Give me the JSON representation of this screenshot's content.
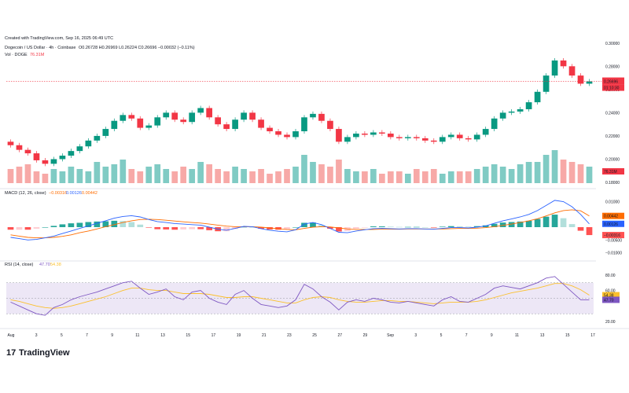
{
  "header": {
    "created": "Created with TradingView.com, Sep 16, 2025 06:49 UTC",
    "symbol": "Dogecoin / US Dollar · 4h · Coinbase",
    "ohlc": "O0.26728  H0.26969  L0.26224  C0.26696  −0.00032 (−0.11%)",
    "vol_label": "Vol · DOGE",
    "vol_value": "76.31M"
  },
  "price_axis": {
    "ticks": [
      "0.30000",
      "0.28000",
      "0.26000",
      "0.24000",
      "0.22000",
      "0.20000",
      "0.18000"
    ],
    "last_price_label": "0.26696",
    "countdown_label": "01:10:30",
    "volume_label": "76.31M"
  },
  "macd": {
    "title": "MACD (12, 26, close)",
    "values_text": [
      "−0.00316",
      "0.00126",
      "0.00442"
    ],
    "ticks": [
      "0.01000",
      "0.00500",
      "−0.00500",
      "−0.01000"
    ],
    "labels": [
      "0.00442",
      "0.00126",
      "−0.00316"
    ]
  },
  "rsi": {
    "title": "RSI (14, close)",
    "values_text": [
      "47.70",
      "54.38"
    ],
    "ticks": [
      "80.00",
      "60.00",
      "20.00"
    ],
    "labels": [
      "54.38",
      "47.70"
    ]
  },
  "time_axis": {
    "ticks": [
      "Aug",
      "3",
      "5",
      "7",
      "9",
      "11",
      "13",
      "15",
      "17",
      "19",
      "21",
      "23",
      "25",
      "27",
      "29",
      "Sep",
      "3",
      "5",
      "7",
      "9",
      "11",
      "13",
      "15",
      "17"
    ]
  },
  "brand": {
    "name": "TradingView"
  },
  "colors": {
    "up": "#089981",
    "down": "#f23645",
    "macd_line": "#2962ff",
    "signal_line": "#ff6d00",
    "rsi_line": "#7e57c2",
    "rsi_ma": "#fbc02d",
    "rsi_band": "#ede7f6",
    "last_price": "#f23645"
  },
  "chart_data": {
    "type": "line",
    "title": "Dogecoin / US Dollar · 4h · Coinbase",
    "x_ticks": [
      "Aug",
      "3",
      "5",
      "7",
      "9",
      "11",
      "13",
      "15",
      "17",
      "19",
      "21",
      "23",
      "25",
      "27",
      "29",
      "Sep",
      "3",
      "5",
      "7",
      "9",
      "11",
      "13",
      "15",
      "17"
    ],
    "ylim": [
      0.18,
      0.31
    ],
    "price_close": [
      0.212,
      0.208,
      0.205,
      0.199,
      0.196,
      0.2,
      0.203,
      0.207,
      0.211,
      0.216,
      0.22,
      0.226,
      0.233,
      0.238,
      0.235,
      0.227,
      0.229,
      0.236,
      0.24,
      0.234,
      0.232,
      0.24,
      0.244,
      0.236,
      0.23,
      0.226,
      0.234,
      0.24,
      0.234,
      0.227,
      0.224,
      0.221,
      0.219,
      0.224,
      0.236,
      0.239,
      0.233,
      0.226,
      0.215,
      0.219,
      0.222,
      0.221,
      0.223,
      0.222,
      0.219,
      0.218,
      0.219,
      0.218,
      0.216,
      0.215,
      0.219,
      0.221,
      0.218,
      0.217,
      0.221,
      0.226,
      0.235,
      0.24,
      0.241,
      0.243,
      0.249,
      0.258,
      0.272,
      0.285,
      0.28,
      0.272,
      0.265,
      0.267
    ],
    "volume": [
      6,
      7,
      8,
      5,
      4,
      6,
      5,
      7,
      6,
      5,
      9,
      7,
      8,
      10,
      6,
      5,
      7,
      8,
      6,
      5,
      7,
      6,
      9,
      8,
      6,
      5,
      7,
      6,
      5,
      6,
      4,
      5,
      6,
      7,
      12,
      9,
      8,
      7,
      10,
      6,
      5,
      5,
      6,
      4,
      5,
      5,
      4,
      6,
      5,
      6,
      4,
      5,
      5,
      5,
      6,
      7,
      8,
      7,
      6,
      8,
      9,
      9,
      12,
      14,
      10,
      9,
      8,
      7
    ],
    "macd": [
      -0.004,
      -0.0045,
      -0.005,
      -0.0048,
      -0.0042,
      -0.0035,
      -0.0025,
      -0.0015,
      -0.0005,
      0.0005,
      0.0015,
      0.0025,
      0.0035,
      0.0042,
      0.0045,
      0.004,
      0.003,
      0.0022,
      0.0018,
      0.0014,
      0.0012,
      0.001,
      0.0008,
      0.0,
      -0.0008,
      -0.0012,
      -0.0005,
      0.0003,
      0.0002,
      -0.0006,
      -0.0012,
      -0.0016,
      -0.0018,
      -0.001,
      0.0012,
      0.0018,
      0.001,
      -0.0005,
      -0.002,
      -0.0022,
      -0.0015,
      -0.001,
      -0.0006,
      -0.0005,
      -0.0006,
      -0.0007,
      -0.0006,
      -0.0006,
      -0.0007,
      -0.0008,
      -0.0005,
      -0.0002,
      -0.0002,
      -0.0003,
      0.0,
      0.0005,
      0.0015,
      0.0025,
      0.0032,
      0.004,
      0.005,
      0.0065,
      0.0085,
      0.0105,
      0.01,
      0.008,
      0.005,
      0.0013
    ],
    "signal": [
      -0.003,
      -0.0035,
      -0.004,
      -0.0042,
      -0.0042,
      -0.004,
      -0.0036,
      -0.003,
      -0.0022,
      -0.0015,
      -0.0007,
      0.0002,
      0.001,
      0.0018,
      0.0025,
      0.003,
      0.0031,
      0.003,
      0.0027,
      0.0024,
      0.0021,
      0.0018,
      0.0016,
      0.0012,
      0.0008,
      0.0004,
      0.0002,
      0.0002,
      0.0002,
      0.0,
      -0.0003,
      -0.0006,
      -0.0009,
      -0.001,
      -0.0005,
      0.0,
      0.0002,
      0.0001,
      -0.0003,
      -0.0007,
      -0.0009,
      -0.0009,
      -0.0009,
      -0.0008,
      -0.0008,
      -0.0008,
      -0.0007,
      -0.0007,
      -0.0007,
      -0.0007,
      -0.0007,
      -0.0006,
      -0.0005,
      -0.0005,
      -0.0004,
      -0.0002,
      0.0002,
      0.0007,
      0.0012,
      0.0018,
      0.0025,
      0.0033,
      0.0044,
      0.0056,
      0.0065,
      0.0068,
      0.0064,
      0.0044
    ],
    "rsi": [
      45,
      40,
      35,
      30,
      28,
      38,
      42,
      48,
      52,
      55,
      58,
      62,
      66,
      70,
      72,
      63,
      55,
      58,
      62,
      52,
      48,
      58,
      60,
      50,
      45,
      42,
      55,
      60,
      50,
      42,
      40,
      38,
      40,
      48,
      68,
      62,
      52,
      45,
      35,
      45,
      48,
      46,
      50,
      48,
      45,
      44,
      46,
      44,
      42,
      40,
      48,
      52,
      46,
      45,
      50,
      55,
      63,
      66,
      64,
      62,
      66,
      70,
      76,
      78,
      68,
      58,
      48,
      48
    ],
    "rsi_ma": [
      48,
      46,
      43,
      40,
      38,
      37,
      38,
      40,
      43,
      46,
      49,
      52,
      56,
      60,
      63,
      63,
      61,
      60,
      60,
      58,
      56,
      56,
      56,
      55,
      53,
      51,
      51,
      52,
      52,
      50,
      48,
      46,
      44,
      44,
      48,
      51,
      52,
      51,
      48,
      46,
      45,
      45,
      46,
      47,
      47,
      46,
      46,
      45,
      44,
      43,
      44,
      45,
      45,
      45,
      46,
      48,
      51,
      54,
      57,
      59,
      61,
      63,
      66,
      69,
      69,
      66,
      61,
      54
    ]
  }
}
